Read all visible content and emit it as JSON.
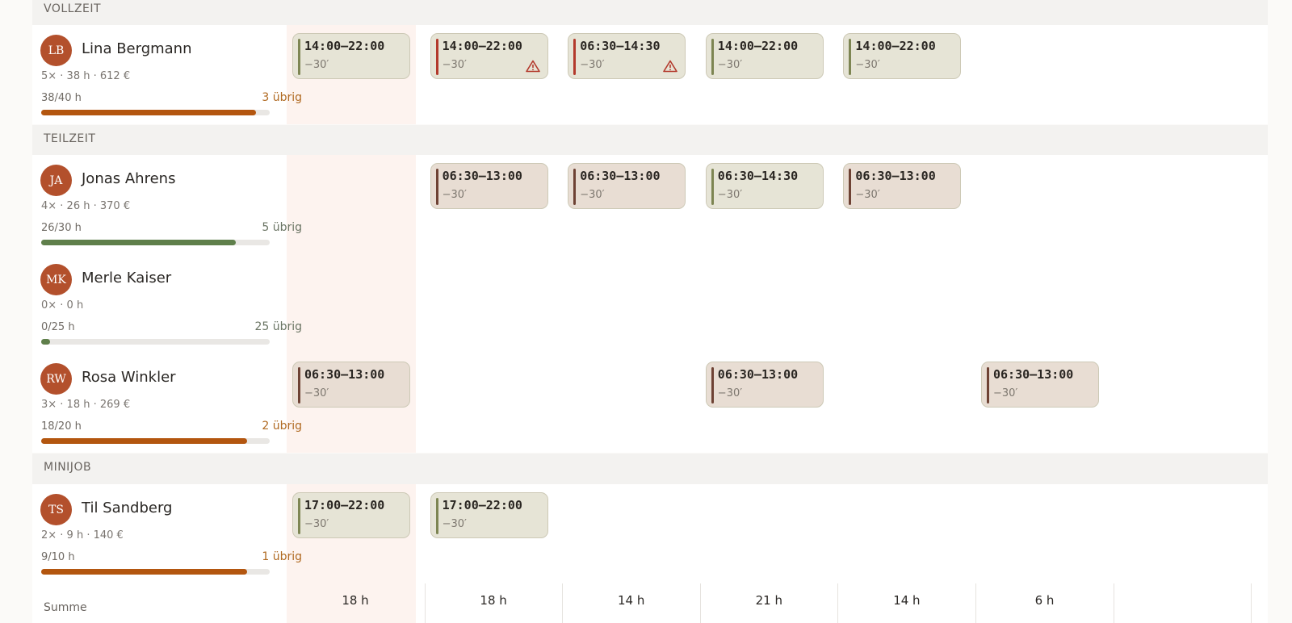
{
  "sections": [
    {
      "title": "VOLLZEIT",
      "employees": [
        {
          "initials": "LB",
          "name": "Lina Bergmann",
          "stats": "5× · 38 h · 612 €",
          "hours": "38/40 h",
          "remaining": "3 übrig",
          "shifts": [
            {
              "time": "14:00–22:00",
              "break": "−30′",
              "color": "#7d8552",
              "warning": false
            },
            {
              "time": "14:00–22:00",
              "break": "−30′",
              "color": "#b3392c",
              "warning": true
            },
            {
              "time": "06:30–14:30",
              "break": "−30′",
              "color": "#b3392c",
              "warning": true
            },
            {
              "time": "14:00–22:00",
              "break": "−30′",
              "color": "#7d8552",
              "warning": false
            },
            {
              "time": "14:00–22:00",
              "break": "−30′",
              "color": "#7d8552",
              "warning": false
            },
            null,
            null
          ]
        }
      ]
    },
    {
      "title": "TEILZEIT",
      "employees": [
        {
          "initials": "JA",
          "name": "Jonas Ahrens",
          "stats": "4× · 26 h · 370 €",
          "hours": "26/30 h",
          "remaining": "5 übrig",
          "shifts": [
            null,
            {
              "time": "06:30–13:00",
              "break": "−30′",
              "color": "#6e4234",
              "warning": false
            },
            {
              "time": "06:30–13:00",
              "break": "−30′",
              "color": "#6e4234",
              "warning": false
            },
            {
              "time": "06:30–14:30",
              "break": "−30′",
              "color": "#7d8552",
              "warning": false
            },
            {
              "time": "06:30–13:00",
              "break": "−30′",
              "color": "#6e4234",
              "warning": false
            },
            null,
            null
          ]
        },
        {
          "initials": "MK",
          "name": "Merle Kaiser",
          "stats": "0× · 0 h",
          "hours": "0/25 h",
          "remaining": "25 übrig",
          "shifts": [
            null,
            null,
            null,
            null,
            null,
            null,
            null
          ]
        },
        {
          "initials": "RW",
          "name": "Rosa Winkler",
          "stats": "3× · 18 h · 269 €",
          "hours": "18/20 h",
          "remaining": "2 übrig",
          "shifts": [
            {
              "time": "06:30–13:00",
              "break": "−30′",
              "color": "#6e4234",
              "warning": false
            },
            null,
            null,
            {
              "time": "06:30–13:00",
              "break": "−30′",
              "color": "#6e4234",
              "warning": false
            },
            null,
            {
              "time": "06:30–13:00",
              "break": "−30′",
              "color": "#6e4234",
              "warning": false
            },
            null
          ]
        }
      ]
    },
    {
      "title": "MINIJOB",
      "employees": [
        {
          "initials": "TS",
          "name": "Til Sandberg",
          "stats": "2× · 9 h · 140 €",
          "hours": "9/10 h",
          "remaining": "1 übrig",
          "shifts": [
            {
              "time": "17:00–22:00",
              "break": "−30′",
              "color": "#7d8552",
              "warning": false
            },
            {
              "time": "17:00–22:00",
              "break": "−30′",
              "color": "#7d8552",
              "warning": false
            },
            null,
            null,
            null,
            null,
            null
          ]
        }
      ]
    }
  ],
  "footer": {
    "label": "Summe",
    "totals": [
      "18 h",
      "18 h",
      "14 h",
      "21 h",
      "14 h",
      "6 h",
      null
    ]
  }
}
